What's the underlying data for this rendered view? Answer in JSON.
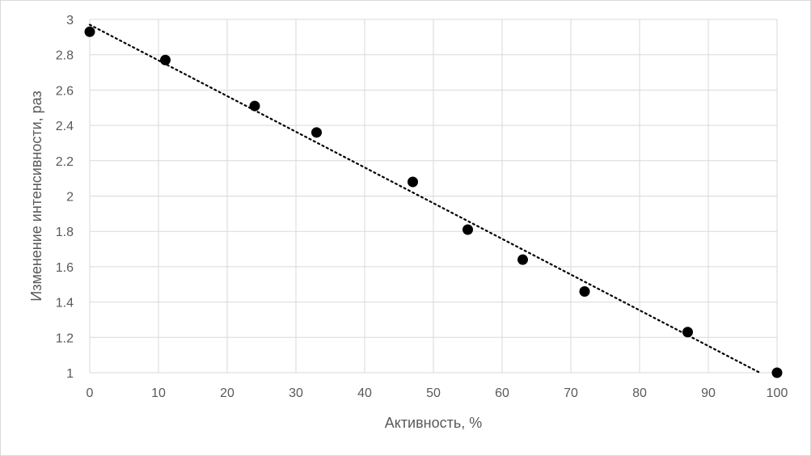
{
  "chart_data": {
    "type": "scatter",
    "title": "",
    "xlabel": "Активность, %",
    "ylabel": "Изменение интенсивности, раз",
    "xlim": [
      0,
      100
    ],
    "ylim": [
      1,
      3
    ],
    "x_ticks": [
      "0",
      "10",
      "20",
      "30",
      "40",
      "50",
      "60",
      "70",
      "80",
      "90",
      "100"
    ],
    "y_ticks": [
      "1",
      "1.2",
      "1.4",
      "1.6",
      "1.8",
      "2",
      "2.2",
      "2.4",
      "2.6",
      "2.8",
      "3"
    ],
    "grid": true,
    "legend": "none",
    "marker_color": "#000000",
    "series": [
      {
        "x": [
          0,
          11,
          24,
          33,
          47,
          55,
          63,
          72,
          87,
          100
        ],
        "y": [
          2.93,
          2.77,
          2.51,
          2.36,
          2.08,
          1.81,
          1.64,
          1.46,
          1.23,
          1.0
        ]
      }
    ],
    "trendline": {
      "style": "dotted",
      "type": "linear",
      "x": [
        0,
        97.5
      ],
      "y": [
        2.97,
        1.0
      ]
    }
  }
}
